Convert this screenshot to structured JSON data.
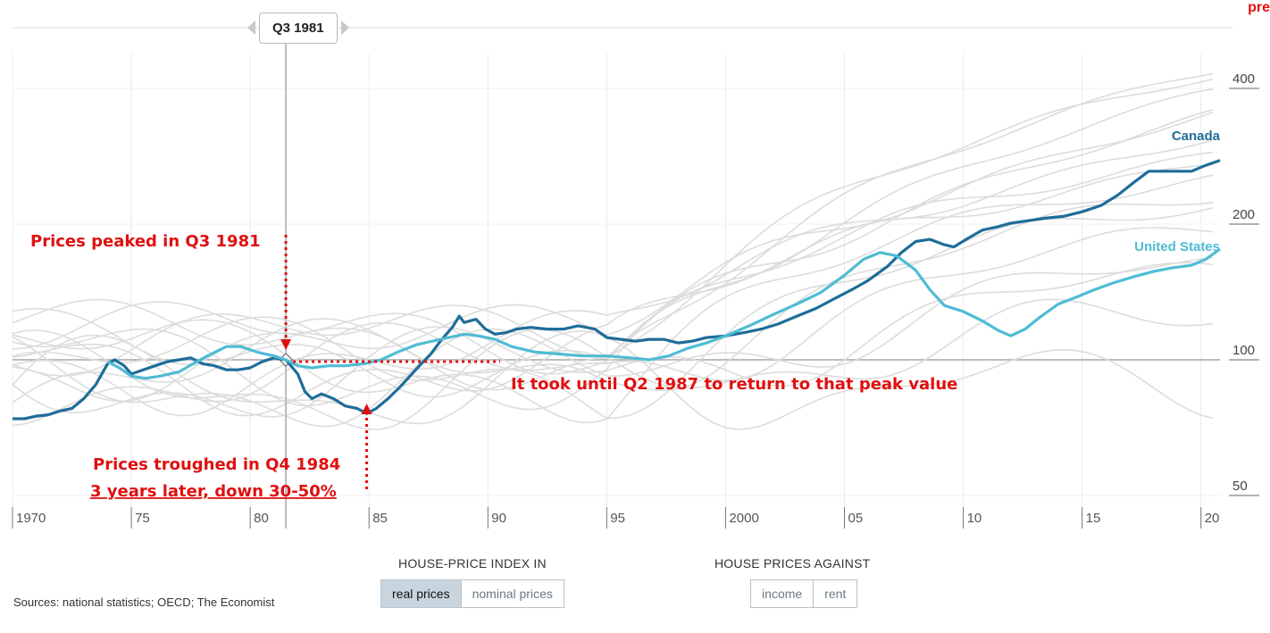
{
  "selector": {
    "label": "Q3 1981"
  },
  "corner_text": "pre",
  "source": {
    "text": "Sources: national statistics; OECD; The Economist"
  },
  "controls": {
    "index": {
      "title": "HOUSE-PRICE INDEX IN",
      "options": [
        "real prices",
        "nominal prices"
      ],
      "active": 0
    },
    "against": {
      "title": "HOUSE PRICES AGAINST",
      "options": [
        "income",
        "rent"
      ],
      "active": -1
    }
  },
  "colors": {
    "canada": "#1f6d9a",
    "us": "#4fbcd4",
    "background_lines": "#dcdcdc",
    "annotation": "#e01010"
  },
  "chart_data": {
    "type": "line",
    "title": "House-price index",
    "x_ticks": [
      "1970",
      "75",
      "80",
      "85",
      "90",
      "95",
      "2000",
      "05",
      "10",
      "15",
      "20"
    ],
    "x_tick_years": [
      1970,
      1975,
      1980,
      1985,
      1990,
      1995,
      2000,
      2005,
      2010,
      2015,
      2020
    ],
    "xlim": [
      1970,
      2020.8
    ],
    "y_scale": "log",
    "y_ticks": [
      50,
      100,
      200,
      400
    ],
    "ylim": [
      42,
      520
    ],
    "highlight_year": 1981.5,
    "series": [
      {
        "name": "Canada",
        "color": "#1f6d9a",
        "points": [
          [
            1970,
            74
          ],
          [
            1970.5,
            74
          ],
          [
            1971,
            75
          ],
          [
            1971.5,
            75.5
          ],
          [
            1972,
            77
          ],
          [
            1972.5,
            78
          ],
          [
            1973,
            82
          ],
          [
            1973.5,
            88
          ],
          [
            1974,
            98
          ],
          [
            1974.3,
            100
          ],
          [
            1974.7,
            97
          ],
          [
            1975,
            93
          ],
          [
            1975.5,
            95
          ],
          [
            1976,
            97
          ],
          [
            1976.5,
            99
          ],
          [
            1977,
            100
          ],
          [
            1977.5,
            101
          ],
          [
            1978,
            98
          ],
          [
            1978.5,
            97
          ],
          [
            1979,
            95
          ],
          [
            1979.5,
            95
          ],
          [
            1980,
            96
          ],
          [
            1980.5,
            99
          ],
          [
            1981,
            101
          ],
          [
            1981.5,
            100
          ],
          [
            1982,
            93
          ],
          [
            1982.3,
            85
          ],
          [
            1982.6,
            82
          ],
          [
            1983,
            84
          ],
          [
            1983.5,
            82
          ],
          [
            1984,
            79
          ],
          [
            1984.5,
            78
          ],
          [
            1984.9,
            76
          ],
          [
            1985.3,
            78
          ],
          [
            1985.8,
            82
          ],
          [
            1986.3,
            87
          ],
          [
            1986.8,
            93
          ],
          [
            1987.2,
            98
          ],
          [
            1987.6,
            103
          ],
          [
            1988,
            110
          ],
          [
            1988.5,
            118
          ],
          [
            1988.8,
            125
          ],
          [
            1989,
            121
          ],
          [
            1989.5,
            123
          ],
          [
            1989.9,
            117
          ],
          [
            1990.3,
            114
          ],
          [
            1990.8,
            115
          ],
          [
            1991.2,
            117
          ],
          [
            1991.8,
            118
          ],
          [
            1992.5,
            117
          ],
          [
            1993.2,
            117
          ],
          [
            1993.8,
            119
          ],
          [
            1994.5,
            117
          ],
          [
            1995,
            112
          ],
          [
            1995.6,
            111
          ],
          [
            1996.2,
            110
          ],
          [
            1996.8,
            111
          ],
          [
            1997.4,
            111
          ],
          [
            1998,
            109
          ],
          [
            1998.6,
            110
          ],
          [
            1999.2,
            112
          ],
          [
            2000,
            113
          ],
          [
            2000.8,
            115
          ],
          [
            2001.5,
            117
          ],
          [
            2002.2,
            120
          ],
          [
            2003,
            125
          ],
          [
            2003.8,
            130
          ],
          [
            2004.5,
            136
          ],
          [
            2005.3,
            143
          ],
          [
            2006,
            150
          ],
          [
            2006.8,
            161
          ],
          [
            2007.4,
            173
          ],
          [
            2008,
            183
          ],
          [
            2008.6,
            185
          ],
          [
            2009.2,
            180
          ],
          [
            2009.6,
            178
          ],
          [
            2010.2,
            186
          ],
          [
            2010.8,
            194
          ],
          [
            2011.4,
            197
          ],
          [
            2012,
            201
          ],
          [
            2012.6,
            203
          ],
          [
            2013.4,
            206
          ],
          [
            2014.2,
            208
          ],
          [
            2015,
            213
          ],
          [
            2015.8,
            220
          ],
          [
            2016.5,
            232
          ],
          [
            2017.2,
            248
          ],
          [
            2017.8,
            262
          ],
          [
            2018.4,
            262
          ],
          [
            2019,
            262
          ],
          [
            2019.6,
            262
          ],
          [
            2020.2,
            270
          ],
          [
            2020.8,
            277
          ]
        ]
      },
      {
        "name": "United States",
        "color": "#4fbcd4",
        "points": [
          [
            1974,
            99
          ],
          [
            1974.5,
            96
          ],
          [
            1975,
            92
          ],
          [
            1975.6,
            91
          ],
          [
            1976.2,
            92
          ],
          [
            1977,
            94
          ],
          [
            1977.6,
            98
          ],
          [
            1978.2,
            102
          ],
          [
            1979,
            107
          ],
          [
            1979.6,
            107
          ],
          [
            1980.3,
            104
          ],
          [
            1981,
            102
          ],
          [
            1981.5,
            100
          ],
          [
            1982,
            97
          ],
          [
            1982.6,
            96
          ],
          [
            1983.3,
            97
          ],
          [
            1984,
            97
          ],
          [
            1984.8,
            98
          ],
          [
            1985.5,
            100
          ],
          [
            1986.2,
            104
          ],
          [
            1987,
            108
          ],
          [
            1988,
            111
          ],
          [
            1989,
            114
          ],
          [
            1989.6,
            113
          ],
          [
            1990.3,
            111
          ],
          [
            1991,
            107
          ],
          [
            1992,
            104
          ],
          [
            1993,
            103
          ],
          [
            1994,
            102
          ],
          [
            1995,
            102
          ],
          [
            1996,
            101
          ],
          [
            1996.8,
            100
          ],
          [
            1997.6,
            102
          ],
          [
            1998.4,
            106
          ],
          [
            1999.2,
            109
          ],
          [
            2000,
            113
          ],
          [
            2001,
            119
          ],
          [
            2002,
            126
          ],
          [
            2003,
            133
          ],
          [
            2004,
            141
          ],
          [
            2005,
            154
          ],
          [
            2005.8,
            167
          ],
          [
            2006.5,
            173
          ],
          [
            2007.2,
            170
          ],
          [
            2008,
            158
          ],
          [
            2008.6,
            143
          ],
          [
            2009.2,
            132
          ],
          [
            2010,
            128
          ],
          [
            2010.8,
            122
          ],
          [
            2011.5,
            116
          ],
          [
            2012,
            113
          ],
          [
            2012.6,
            117
          ],
          [
            2013.2,
            124
          ],
          [
            2014,
            133
          ],
          [
            2014.8,
            138
          ],
          [
            2015.5,
            143
          ],
          [
            2016.3,
            148
          ],
          [
            2017.2,
            153
          ],
          [
            2018,
            157
          ],
          [
            2018.8,
            160
          ],
          [
            2019.6,
            162
          ],
          [
            2020.2,
            167
          ],
          [
            2020.8,
            176
          ]
        ]
      }
    ],
    "annotations": [
      {
        "text": "Prices peaked in Q3 1981"
      },
      {
        "text": "It took until Q2 1987 to return to that peak value"
      },
      {
        "text": "Prices troughed in Q4 1984"
      },
      {
        "text": "3 years later, down 30-50%"
      }
    ]
  }
}
